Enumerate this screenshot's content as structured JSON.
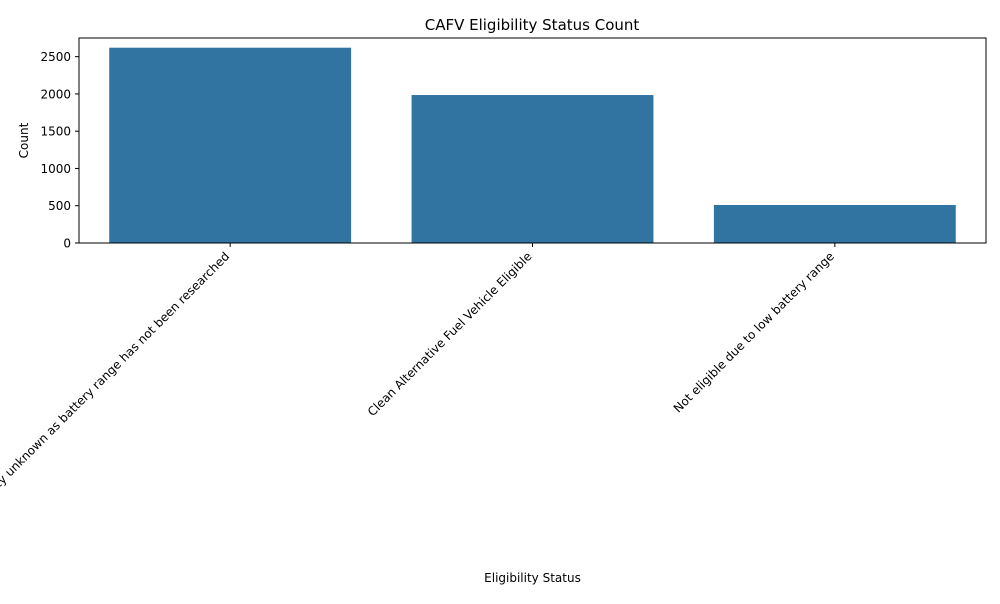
{
  "chart_data": {
    "type": "bar",
    "title": "CAFV Eligibility Status Count",
    "xlabel": "Eligibility Status",
    "ylabel": "Count",
    "categories": [
      "Eligibility unknown as battery range has not been researched",
      "Clean Alternative Fuel Vehicle Eligible",
      "Not eligible due to low battery range"
    ],
    "values": [
      2620,
      1985,
      510
    ],
    "ylim": [
      0,
      2750
    ],
    "yticks": [
      0,
      500,
      1000,
      1500,
      2000,
      2500
    ],
    "bar_color": "#3274a1",
    "grid": false,
    "legend": "none"
  }
}
